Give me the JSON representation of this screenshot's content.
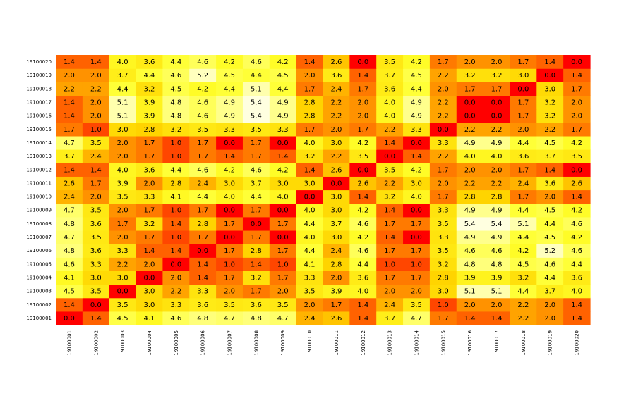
{
  "chart_data": {
    "type": "heatmap",
    "title": "",
    "xlabel": "",
    "ylabel": "",
    "grid": false,
    "legend": "none",
    "colormap": "heat",
    "colors": {
      "low": "#ff0000",
      "mid_low": "#ff6a00",
      "mid": "#ffd500",
      "high": "#ffff2a",
      "max": "#ffffe0",
      "text": "#000000"
    },
    "value_range": [
      0,
      5.4
    ],
    "x_categories": [
      "19100001",
      "19100002",
      "19100003",
      "19100004",
      "19100005",
      "19100006",
      "19100007",
      "19100008",
      "19100009",
      "19100010",
      "19100011",
      "19100012",
      "19100013",
      "19100014",
      "19100015",
      "19100016",
      "19100017",
      "19100018",
      "19100019",
      "19100020"
    ],
    "y_categories": [
      "19100001",
      "19100002",
      "19100003",
      "19100004",
      "19100005",
      "19100006",
      "19100007",
      "19100008",
      "19100009",
      "19100010",
      "19100011",
      "19100012",
      "19100013",
      "19100014",
      "19100015",
      "19100016",
      "19100017",
      "19100018",
      "19100019",
      "19100020"
    ],
    "values": [
      [
        0.0,
        1.4,
        4.5,
        4.1,
        4.6,
        4.8,
        4.7,
        4.8,
        4.7,
        2.4,
        2.6,
        1.4,
        3.7,
        4.7,
        1.7,
        1.4,
        1.4,
        2.2,
        2.0,
        1.4
      ],
      [
        1.4,
        0.0,
        3.5,
        3.0,
        3.3,
        3.6,
        3.5,
        3.6,
        3.5,
        2.0,
        1.7,
        1.4,
        2.4,
        3.5,
        1.0,
        2.0,
        2.0,
        2.2,
        2.0,
        1.4
      ],
      [
        4.5,
        3.5,
        0.0,
        3.0,
        2.2,
        3.3,
        2.0,
        1.7,
        2.0,
        3.5,
        3.9,
        4.0,
        2.0,
        2.0,
        3.0,
        5.1,
        5.1,
        4.4,
        3.7,
        4.0
      ],
      [
        4.1,
        3.0,
        3.0,
        0.0,
        2.0,
        1.4,
        1.7,
        3.2,
        1.7,
        3.3,
        2.0,
        3.6,
        1.7,
        1.7,
        2.8,
        3.9,
        3.9,
        3.2,
        4.4,
        3.6
      ],
      [
        4.6,
        3.3,
        2.2,
        2.0,
        0.0,
        1.4,
        1.0,
        1.4,
        1.0,
        4.1,
        2.8,
        4.4,
        1.0,
        1.0,
        3.2,
        4.8,
        4.8,
        4.5,
        4.6,
        4.4
      ],
      [
        4.8,
        3.6,
        3.3,
        1.4,
        1.4,
        0.0,
        1.7,
        2.8,
        1.7,
        4.4,
        2.4,
        4.6,
        1.7,
        1.7,
        3.5,
        4.6,
        4.6,
        4.2,
        5.2,
        4.6
      ],
      [
        4.7,
        3.5,
        2.0,
        1.7,
        1.0,
        1.7,
        0.0,
        1.7,
        0.0,
        4.0,
        3.0,
        4.2,
        1.4,
        0.0,
        3.3,
        4.9,
        4.9,
        4.4,
        4.5,
        4.2
      ],
      [
        4.8,
        3.6,
        1.7,
        3.2,
        1.4,
        2.8,
        1.7,
        0.0,
        1.7,
        4.4,
        3.7,
        4.6,
        1.7,
        1.7,
        3.5,
        5.4,
        5.4,
        5.1,
        4.4,
        4.6
      ],
      [
        4.7,
        3.5,
        2.0,
        1.7,
        1.0,
        1.7,
        0.0,
        1.7,
        0.0,
        4.0,
        3.0,
        4.2,
        1.4,
        0.0,
        3.3,
        4.9,
        4.9,
        4.4,
        4.5,
        4.2
      ],
      [
        2.4,
        2.0,
        3.5,
        3.3,
        4.1,
        4.4,
        4.0,
        4.4,
        4.0,
        0.0,
        3.0,
        1.4,
        3.2,
        4.0,
        1.7,
        2.8,
        2.8,
        1.7,
        2.0,
        1.4
      ],
      [
        2.6,
        1.7,
        3.9,
        2.0,
        2.8,
        2.4,
        3.0,
        3.7,
        3.0,
        3.0,
        0.0,
        2.6,
        2.2,
        3.0,
        2.0,
        2.2,
        2.2,
        2.4,
        3.6,
        2.6
      ],
      [
        1.4,
        1.4,
        4.0,
        3.6,
        4.4,
        4.6,
        4.2,
        4.6,
        4.2,
        1.4,
        2.6,
        0.0,
        3.5,
        4.2,
        1.7,
        2.0,
        2.0,
        1.7,
        1.4,
        0.0
      ],
      [
        3.7,
        2.4,
        2.0,
        1.7,
        1.0,
        1.7,
        1.4,
        1.7,
        1.4,
        3.2,
        2.2,
        3.5,
        0.0,
        1.4,
        2.2,
        4.0,
        4.0,
        3.6,
        3.7,
        3.5
      ],
      [
        4.7,
        3.5,
        2.0,
        1.7,
        1.0,
        1.7,
        0.0,
        1.7,
        0.0,
        4.0,
        3.0,
        4.2,
        1.4,
        0.0,
        3.3,
        4.9,
        4.9,
        4.4,
        4.5,
        4.2
      ],
      [
        1.7,
        1.0,
        3.0,
        2.8,
        3.2,
        3.5,
        3.3,
        3.5,
        3.3,
        1.7,
        2.0,
        1.7,
        2.2,
        3.3,
        0.0,
        2.2,
        2.2,
        2.0,
        2.2,
        1.7
      ],
      [
        1.4,
        2.0,
        5.1,
        3.9,
        4.8,
        4.6,
        4.9,
        5.4,
        4.9,
        2.8,
        2.2,
        2.0,
        4.0,
        4.9,
        2.2,
        0.0,
        0.0,
        1.7,
        3.2,
        2.0
      ],
      [
        1.4,
        2.0,
        5.1,
        3.9,
        4.8,
        4.6,
        4.9,
        5.4,
        4.9,
        2.8,
        2.2,
        2.0,
        4.0,
        4.9,
        2.2,
        0.0,
        0.0,
        1.7,
        3.2,
        2.0
      ],
      [
        2.2,
        2.2,
        4.4,
        3.2,
        4.5,
        4.2,
        4.4,
        5.1,
        4.4,
        1.7,
        2.4,
        1.7,
        3.6,
        4.4,
        2.0,
        1.7,
        1.7,
        0.0,
        3.0,
        1.7
      ],
      [
        2.0,
        2.0,
        3.7,
        4.4,
        4.6,
        5.2,
        4.5,
        4.4,
        4.5,
        2.0,
        3.6,
        1.4,
        3.7,
        4.5,
        2.2,
        3.2,
        3.2,
        3.0,
        0.0,
        1.4
      ],
      [
        1.4,
        1.4,
        4.0,
        3.6,
        4.4,
        4.6,
        4.2,
        4.6,
        4.2,
        1.4,
        2.6,
        0.0,
        3.5,
        4.2,
        1.7,
        2.0,
        2.0,
        1.7,
        1.4,
        0.0
      ]
    ]
  }
}
